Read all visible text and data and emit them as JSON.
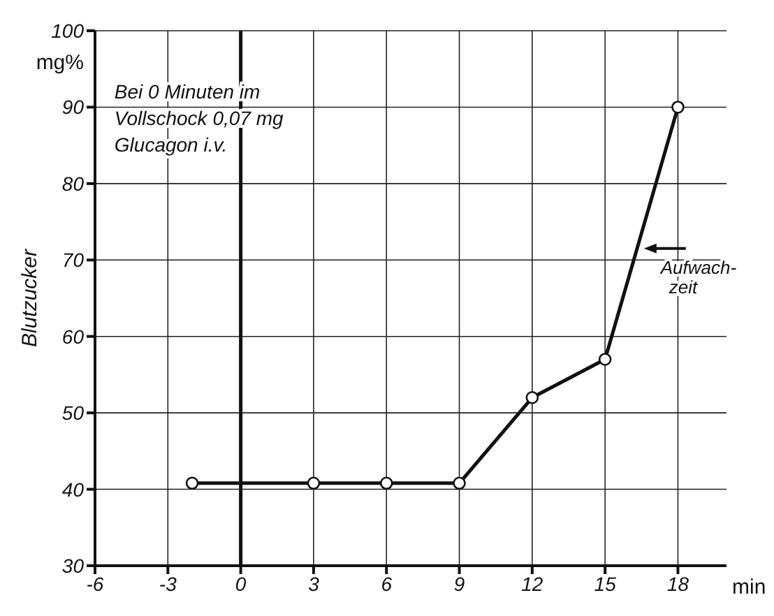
{
  "chart_data": {
    "type": "line",
    "x": [
      -2,
      3,
      6,
      9,
      12,
      15,
      18
    ],
    "series": [
      {
        "color": "#111111",
        "values": [
          40.8,
          40.8,
          40.8,
          40.8,
          52,
          57,
          90
        ]
      }
    ],
    "xlabel": "min",
    "ylabel": "Blutzucker",
    "xlim": [
      -6,
      20
    ],
    "xticks": [
      -6,
      -3,
      0,
      3,
      6,
      9,
      12,
      15,
      18
    ],
    "ylim": [
      30,
      100
    ],
    "yticks": [
      30,
      40,
      50,
      60,
      70,
      80,
      90,
      100
    ],
    "grid": true,
    "marker": "circle",
    "line_style": "solid",
    "ref_lines": [
      {
        "axis": "x",
        "value": 0,
        "color": "#111111"
      }
    ],
    "annotations": [
      "mg%",
      {
        "text": "Bei 0 Minuten im\nVollschock 0,07 mg\nGlucagon i.v.",
        "x": 0,
        "y": 90
      },
      {
        "text": "Aufwach-\nzeit",
        "x": 16.6,
        "y": 71.5
      }
    ]
  }
}
